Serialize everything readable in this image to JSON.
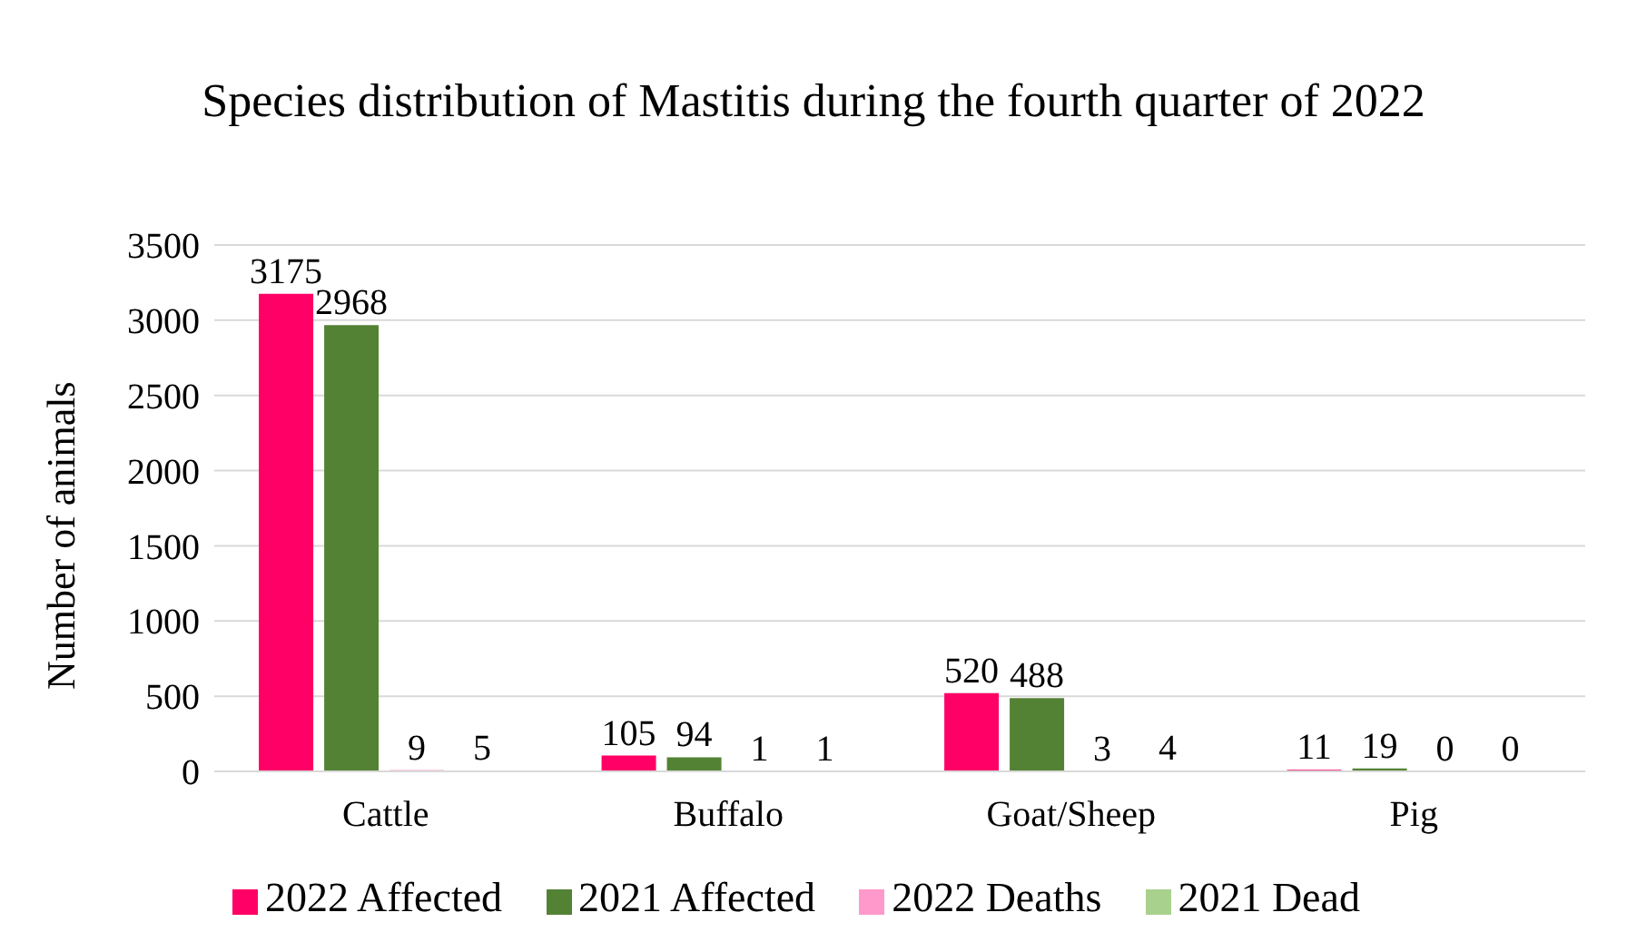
{
  "chart_data": {
    "type": "bar",
    "title": "Species distribution of Mastitis during the fourth quarter of 2022",
    "ylabel": "Number of animals",
    "categories": [
      "Cattle",
      "Buffalo",
      "Goat/Sheep",
      "Pig"
    ],
    "series": [
      {
        "name": "2022 Affected",
        "color": "#ff0066",
        "values": [
          3175,
          105,
          520,
          11
        ]
      },
      {
        "name": "2021 Affected",
        "color": "#548235",
        "values": [
          2968,
          94,
          488,
          19
        ]
      },
      {
        "name": "2022 Deaths",
        "color": "#ff99cc",
        "values": [
          9,
          1,
          3,
          0
        ]
      },
      {
        "name": "2021 Dead",
        "color": "#a9d18e",
        "values": [
          5,
          1,
          4,
          0
        ]
      }
    ],
    "ylim": [
      0,
      3500
    ],
    "yticks": [
      0,
      500,
      1000,
      1500,
      2000,
      2500,
      3000,
      3500
    ],
    "grid": "y",
    "legend": "bottom",
    "data_labels": true
  }
}
